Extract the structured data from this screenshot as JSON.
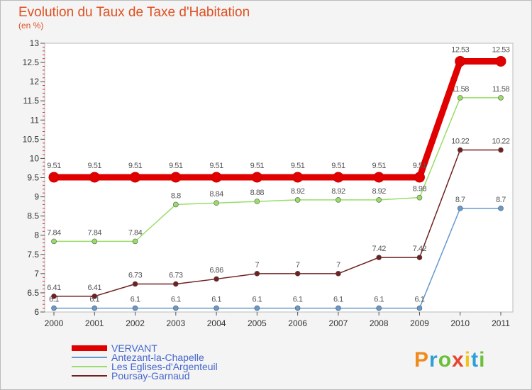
{
  "header": {
    "title": "Evolution du Taux de Taxe d'Habitation",
    "subtitle": "(en %)"
  },
  "logo": {
    "text": "Proxiti",
    "letters": [
      "P",
      "r",
      "o",
      "x",
      "i",
      "t",
      "i"
    ],
    "colors": [
      "#f08a1c",
      "#2f9fd8",
      "#6cbf3a",
      "#e8452c",
      "#f0c419",
      "#2f9fd8",
      "#6cbf3a"
    ]
  },
  "chart_data": {
    "type": "line",
    "title": "Evolution du Taux de Taxe d'Habitation",
    "subtitle": "(en %)",
    "xlabel": "",
    "ylabel": "",
    "x": [
      "2000",
      "2001",
      "2002",
      "2003",
      "2004",
      "2005",
      "2006",
      "2007",
      "2008",
      "2009",
      "2010",
      "2011"
    ],
    "ylim": [
      6,
      13
    ],
    "yticks": [
      "6",
      "6.5",
      "7",
      "7.5",
      "8",
      "8.5",
      "9",
      "9.5",
      "10",
      "10.5",
      "11",
      "11.5",
      "12",
      "12.5",
      "13"
    ],
    "grid": false,
    "legend_position": "bottom-left",
    "series": [
      {
        "name": "VERVANT",
        "color": "#e00000",
        "values": [
          9.51,
          9.51,
          9.51,
          9.51,
          9.51,
          9.51,
          9.51,
          9.51,
          9.51,
          9.51,
          12.53,
          12.53
        ],
        "labels": [
          "9.51",
          "9.51",
          "9.51",
          "9.51",
          "9.51",
          "9.51",
          "9.51",
          "9.51",
          "9.51",
          "9.51",
          "12.53",
          "12.53"
        ]
      },
      {
        "name": "Antezant-la-Chapelle",
        "color": "#6699cc",
        "values": [
          6.1,
          6.1,
          6.1,
          6.1,
          6.1,
          6.1,
          6.1,
          6.1,
          6.1,
          6.1,
          8.7,
          8.7
        ],
        "labels": [
          "6.1",
          "6.1",
          "6.1",
          "6.1",
          "6.1",
          "6.1",
          "6.1",
          "6.1",
          "6.1",
          "6.1",
          "8.7",
          "8.7"
        ]
      },
      {
        "name": "Les Eglises-d'Argenteuil",
        "color": "#99dd66",
        "values": [
          7.84,
          7.84,
          7.84,
          8.8,
          8.84,
          8.88,
          8.92,
          8.92,
          8.92,
          8.98,
          11.58,
          11.58
        ],
        "labels": [
          "7.84",
          "7.84",
          "7.84",
          "8.8",
          "8.84",
          "8.88",
          "8.92",
          "8.92",
          "8.92",
          "8.98",
          "11.58",
          "11.58"
        ]
      },
      {
        "name": "Poursay-Garnaud",
        "color": "#702020",
        "values": [
          6.41,
          6.41,
          6.73,
          6.73,
          6.86,
          7,
          7,
          7,
          7.42,
          7.42,
          10.22,
          10.22
        ],
        "labels": [
          "6.41",
          "6.41",
          "6.73",
          "6.73",
          "6.86",
          "7",
          "7",
          "7",
          "7.42",
          "7.42",
          "10.22",
          "10.22"
        ]
      }
    ]
  }
}
